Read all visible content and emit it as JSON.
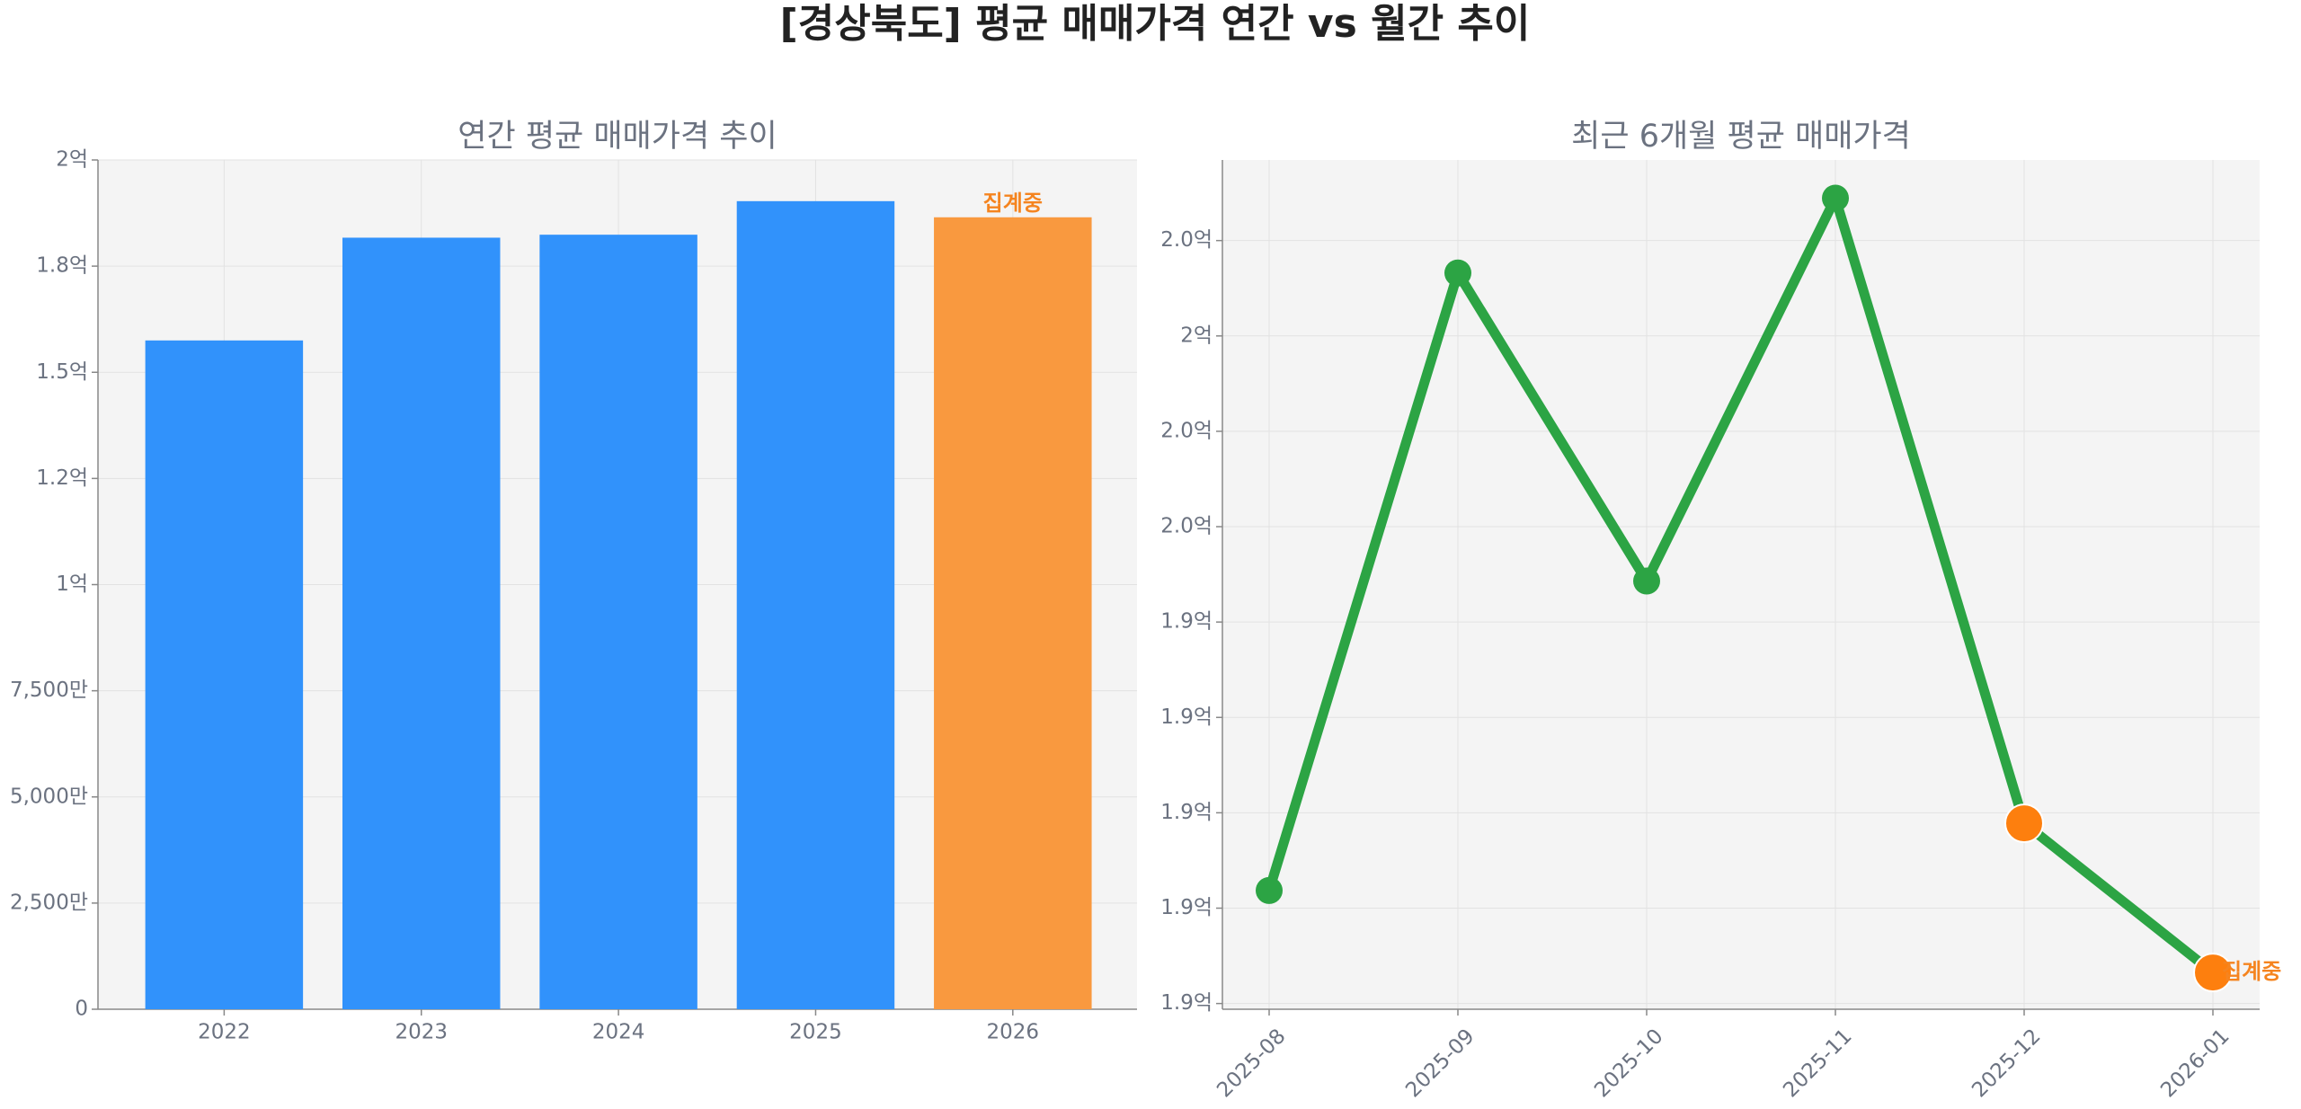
{
  "title": "[경상북도] 평균 매매가격 연간 vs 월간 추이",
  "chart_data": [
    {
      "type": "bar",
      "title": "연간 평균 매매가격 추이",
      "categories": [
        "2022",
        "2023",
        "2024",
        "2025",
        "2026"
      ],
      "values": [
        157500000,
        181700000,
        182400000,
        190300000,
        186500000
      ],
      "colors": [
        "#3192fb",
        "#3192fb",
        "#3192fb",
        "#3192fb",
        "#f9993f"
      ],
      "ylim": [
        0,
        200000000
      ],
      "yticks": [
        0,
        {
          "value": 25000000,
          "label": "2,500만"
        },
        {
          "value": 50000000,
          "label": "5,000만"
        },
        {
          "value": 75000000,
          "label": "7,500만"
        },
        {
          "value": 100000000,
          "label": "1억"
        },
        {
          "value": 125000000,
          "label": "1.2억"
        },
        {
          "value": 150000000,
          "label": "1.5억"
        },
        {
          "value": 175000000,
          "label": "1.8억"
        },
        {
          "value": 200000000,
          "label": "2억"
        }
      ],
      "grid": true,
      "annotations": [
        {
          "text": "집계중",
          "x": "2026",
          "color": "#f5841f"
        }
      ]
    },
    {
      "type": "line",
      "title": "최근 6개월 평균 매매가격",
      "categories": [
        "2025-08",
        "2025-09",
        "2025-10",
        "2025-11",
        "2025-12",
        "2026-01"
      ],
      "values": [
        188370000,
        201320000,
        194860000,
        202890000,
        189780000,
        186650000
      ],
      "color": "#2ca444",
      "marker_colors": [
        "#2ca444",
        "#2ca444",
        "#2ca444",
        "#2ca444",
        "#fd7f0e",
        "#fd7f0e"
      ],
      "ylim": [
        185880000,
        203690000
      ],
      "yticks": [
        {
          "value": 186000000,
          "label": "1.9억"
        },
        {
          "value": 188000000,
          "label": "1.9억"
        },
        {
          "value": 190000000,
          "label": "1.9억"
        },
        {
          "value": 192000000,
          "label": "1.9억"
        },
        {
          "value": 194000000,
          "label": "1.9억"
        },
        {
          "value": 196000000,
          "label": "2.0억"
        },
        {
          "value": 198000000,
          "label": "2.0억"
        },
        {
          "value": 200000000,
          "label": "2억"
        },
        {
          "value": 202000000,
          "label": "2.0억"
        }
      ],
      "grid": true,
      "annotations": [
        {
          "text": "집계중",
          "x": "2026-01",
          "color": "#f5841f"
        }
      ]
    }
  ]
}
